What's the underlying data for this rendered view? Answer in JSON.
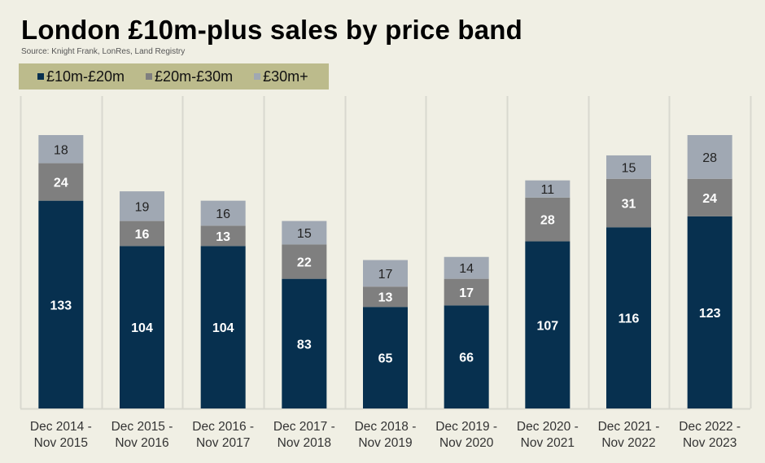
{
  "chart_data": {
    "type": "bar",
    "stacked": true,
    "title": "London £10m-plus sales by price band",
    "subtitle": "Source: Knight Frank, LonRes, Land Registry",
    "xlabel": "",
    "ylabel": "",
    "legend_position": "top-left",
    "grid": "vertical separators between categories",
    "ylim": [
      0,
      180
    ],
    "categories": [
      [
        "Dec 2014 -",
        "Nov 2015"
      ],
      [
        "Dec 2015 -",
        "Nov 2016"
      ],
      [
        "Dec 2016 -",
        "Nov 2017"
      ],
      [
        "Dec 2017 -",
        "Nov 2018"
      ],
      [
        "Dec 2018 -",
        "Nov 2019"
      ],
      [
        "Dec 2019 -",
        "Nov 2020"
      ],
      [
        "Dec 2020 -",
        "Nov 2021"
      ],
      [
        "Dec 2021 -",
        "Nov 2022"
      ],
      [
        "Dec 2022 -",
        "Nov 2023"
      ]
    ],
    "series": [
      {
        "name": "£10m-£20m",
        "color": "#07304f",
        "label_color": "#ffffff",
        "values": [
          133,
          104,
          104,
          83,
          65,
          66,
          107,
          116,
          123
        ]
      },
      {
        "name": "£20m-£30m",
        "color": "#7f7f7f",
        "label_color": "#ffffff",
        "values": [
          24,
          16,
          13,
          22,
          13,
          17,
          28,
          31,
          24
        ]
      },
      {
        "name": "£30m+",
        "color": "#a0a8b3",
        "label_color": "#222222",
        "values": [
          18,
          19,
          16,
          15,
          17,
          14,
          11,
          15,
          28
        ]
      }
    ]
  }
}
